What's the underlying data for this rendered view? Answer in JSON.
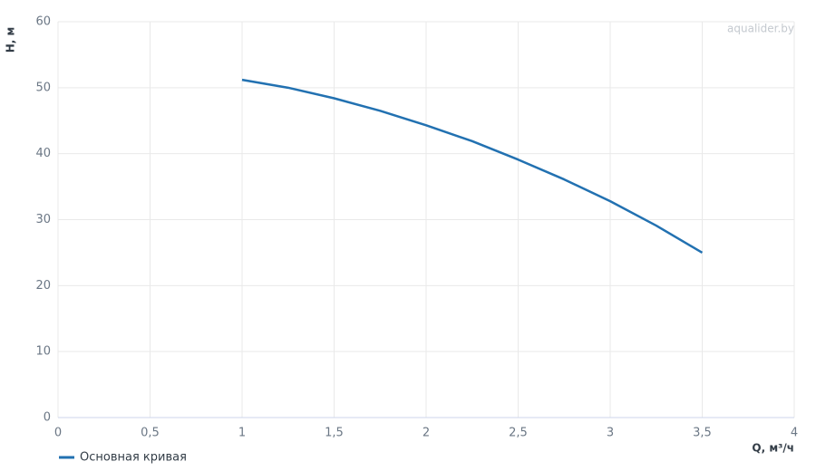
{
  "chart_data": {
    "type": "line",
    "watermark": "aqualider.by",
    "x_label": "Q, м³/ч",
    "y_label": "H, м",
    "x": [
      1,
      1.25,
      1.5,
      1.75,
      2,
      2.25,
      2.5,
      2.75,
      3,
      3.25,
      3.5
    ],
    "series": [
      {
        "name": "Основная кривая",
        "color": "#2271b1",
        "values": [
          51.2,
          50.0,
          48.4,
          46.5,
          44.3,
          41.9,
          39.1,
          36.1,
          32.8,
          29.1,
          25.0
        ]
      }
    ],
    "xlim": [
      0,
      4
    ],
    "xticks": [
      0,
      {
        "value": 0.5,
        "label": "0,5"
      },
      1,
      {
        "value": 1.5,
        "label": "1,5"
      },
      2,
      {
        "value": 2.5,
        "label": "2,5"
      },
      3,
      {
        "value": 3.5,
        "label": "3,5"
      },
      4
    ],
    "ylim": [
      0,
      60
    ],
    "yticks": [
      0,
      10,
      20,
      30,
      40,
      50,
      60
    ],
    "grid": true
  }
}
